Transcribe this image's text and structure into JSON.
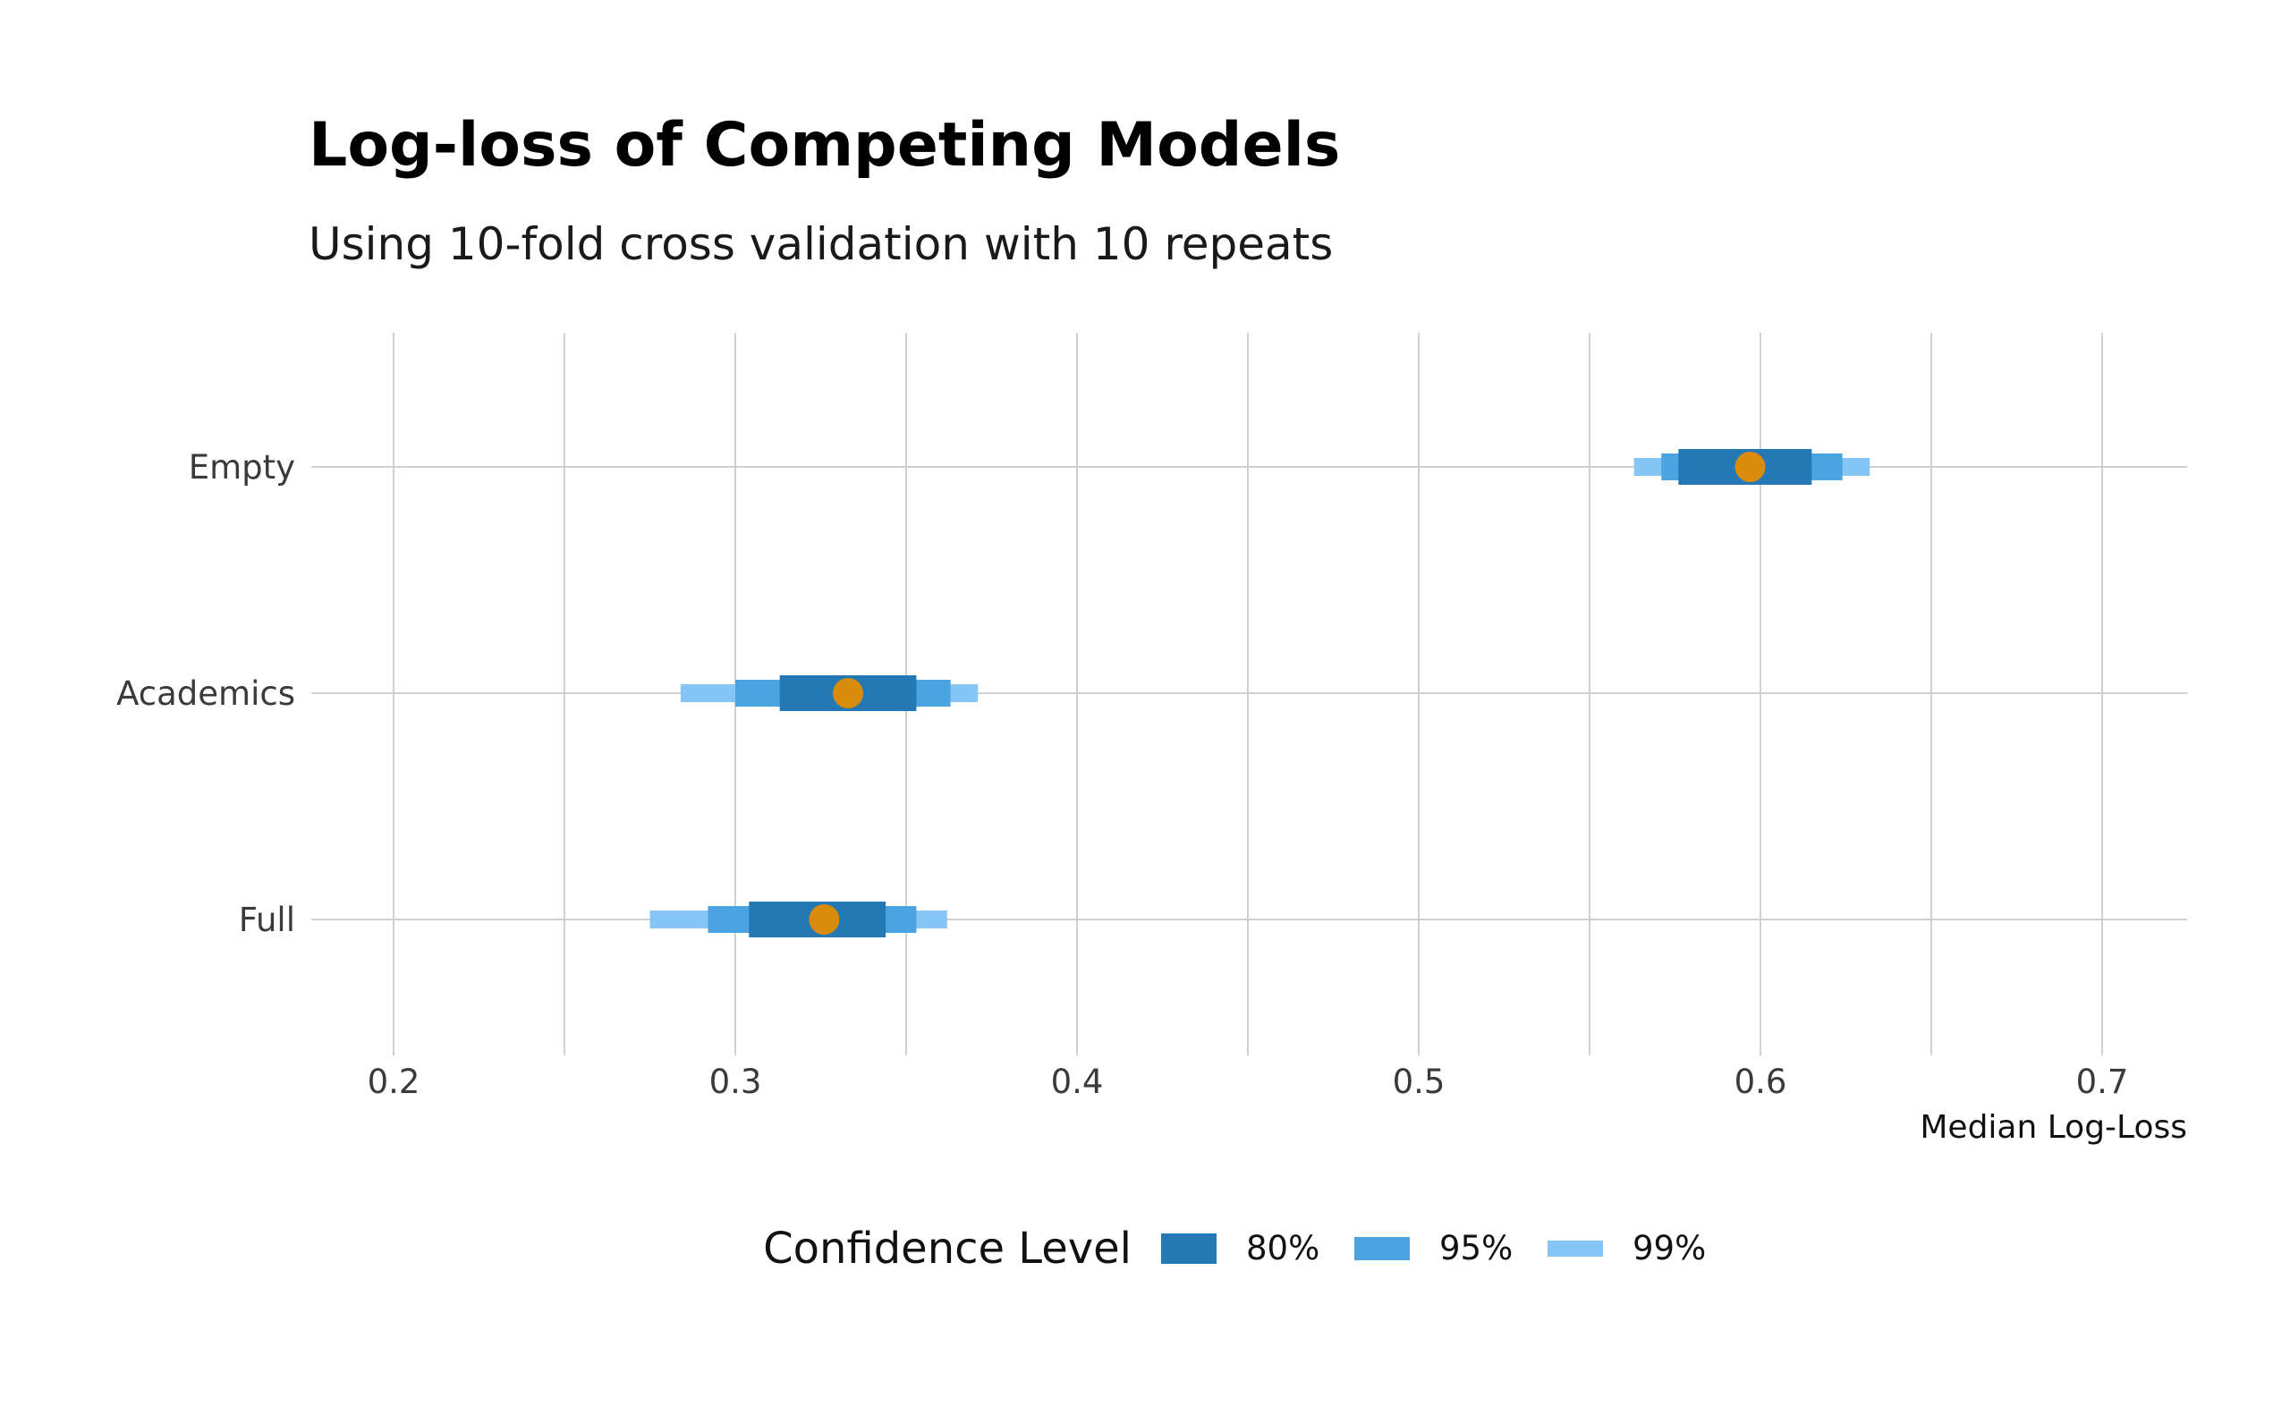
{
  "chart_data": {
    "type": "interval",
    "title": "Log-loss of Competing Models",
    "subtitle": "Using 10-fold cross validation with 10 repeats",
    "xlabel": "Median Log-Loss",
    "ylabel": "",
    "xlim": [
      0.176,
      0.725
    ],
    "x_ticks": [
      0.2,
      0.3,
      0.4,
      0.5,
      0.6,
      0.7
    ],
    "x_tick_labels": [
      "0.2",
      "0.3",
      "0.4",
      "0.5",
      "0.6",
      "0.7"
    ],
    "categories": [
      "Empty",
      "Academics",
      "Full"
    ],
    "grid": true,
    "legend": {
      "title": "Confidence Level",
      "position": "bottom",
      "entries": [
        "80%",
        "95%",
        "99%"
      ]
    },
    "colors": {
      "80%": "#2479b4",
      "95%": "#4ba3e0",
      "99%": "#85c6f7",
      "median": "#d98b0b",
      "grid": "#d0d0d0"
    },
    "series": [
      {
        "category": "Empty",
        "median": 0.597,
        "ci80": [
          0.576,
          0.615
        ],
        "ci95": [
          0.571,
          0.624
        ],
        "ci99": [
          0.563,
          0.632
        ]
      },
      {
        "category": "Academics",
        "median": 0.333,
        "ci80": [
          0.313,
          0.353
        ],
        "ci95": [
          0.3,
          0.363
        ],
        "ci99": [
          0.284,
          0.371
        ]
      },
      {
        "category": "Full",
        "median": 0.326,
        "ci80": [
          0.304,
          0.344
        ],
        "ci95": [
          0.292,
          0.353
        ],
        "ci99": [
          0.275,
          0.362
        ]
      }
    ]
  }
}
